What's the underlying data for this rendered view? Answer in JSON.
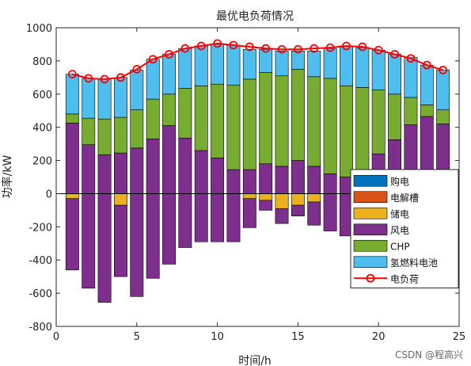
{
  "chart_data": {
    "type": "bar",
    "title": "最优电负荷情况",
    "xlabel": "时间/h",
    "ylabel": "功率/kW",
    "xlim": [
      0,
      25
    ],
    "ylim": [
      -800,
      1000
    ],
    "xticks": [
      0,
      5,
      10,
      15,
      20,
      25
    ],
    "yticks": [
      -800,
      -600,
      -400,
      -200,
      0,
      200,
      400,
      600,
      800,
      1000
    ],
    "grid": false,
    "legend_position": "bottom-right",
    "x": [
      1,
      2,
      3,
      4,
      5,
      6,
      7,
      8,
      9,
      10,
      11,
      12,
      13,
      14,
      15,
      16,
      17,
      18,
      19,
      20,
      21,
      22,
      23,
      24
    ],
    "series": [
      {
        "name": "购电",
        "color": "#0072BD",
        "values": [
          0,
          0,
          0,
          0,
          0,
          0,
          0,
          0,
          0,
          0,
          0,
          0,
          0,
          0,
          0,
          0,
          0,
          0,
          0,
          0,
          0,
          0,
          0,
          0
        ]
      },
      {
        "name": "电解槽",
        "color": "#D95319",
        "values": [
          0,
          0,
          0,
          0,
          0,
          0,
          0,
          0,
          0,
          0,
          0,
          0,
          0,
          0,
          0,
          0,
          0,
          0,
          0,
          0,
          0,
          0,
          0,
          0
        ]
      },
      {
        "name": "储电",
        "color": "#EDB120",
        "values": [
          -30,
          0,
          0,
          -70,
          0,
          0,
          0,
          0,
          0,
          0,
          0,
          -30,
          -40,
          -90,
          -70,
          -50,
          0,
          0,
          0,
          0,
          0,
          0,
          0,
          0
        ]
      },
      {
        "name": "风电",
        "color": "#7E2F8E",
        "values": [
          -430,
          -570,
          -655,
          -430,
          -620,
          -510,
          -425,
          -325,
          -290,
          -290,
          -290,
          -175,
          -60,
          -90,
          -65,
          -140,
          -225,
          -255,
          -220,
          -85,
          0,
          0,
          0,
          0
        ]
      },
      {
        "name": "风电",
        "color": "#7E2F8E",
        "values": [
          425,
          295,
          235,
          245,
          275,
          330,
          410,
          335,
          260,
          215,
          145,
          145,
          180,
          165,
          200,
          165,
          120,
          100,
          115,
          240,
          325,
          415,
          465,
          420
        ]
      },
      {
        "name": "CHP",
        "color": "#77AC30",
        "values": [
          55,
          160,
          215,
          215,
          230,
          240,
          190,
          300,
          390,
          445,
          510,
          545,
          550,
          545,
          550,
          540,
          575,
          550,
          525,
          385,
          275,
          165,
          70,
          85
        ]
      },
      {
        "name": "氢燃料电池",
        "color": "#4DBEEE",
        "values": [
          240,
          240,
          240,
          240,
          240,
          240,
          240,
          240,
          240,
          240,
          240,
          180,
          140,
          150,
          110,
          155,
          180,
          240,
          240,
          240,
          240,
          240,
          240,
          240
        ]
      }
    ],
    "load_series": {
      "name": "电负荷",
      "color": "#FF0000",
      "values": [
        720,
        695,
        690,
        700,
        750,
        810,
        840,
        875,
        890,
        905,
        895,
        885,
        875,
        870,
        870,
        875,
        880,
        890,
        885,
        865,
        840,
        815,
        775,
        745
      ]
    },
    "legend": [
      "购电",
      "电解槽",
      "储电",
      "风电",
      "CHP",
      "氢燃料电池",
      "电负荷"
    ]
  },
  "watermark": "CSDN @程高兴"
}
